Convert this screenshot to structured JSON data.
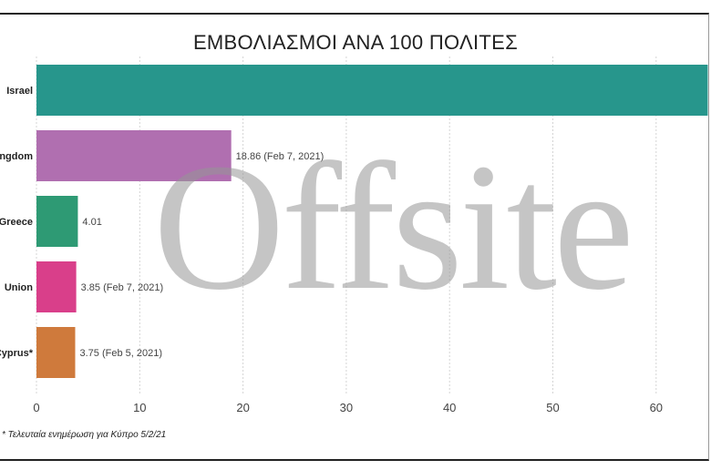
{
  "page": {
    "watermark": "Offsite",
    "footnote": "* Τελευταία ενημέρωση για Κύπρο 5/2/21"
  },
  "chart_data": {
    "type": "bar",
    "orientation": "horizontal",
    "title": "ΕΜΒΟΛΙΑΣΜΟΙ ΑΝΑ 100 ΠΟΛΙΤΕΣ",
    "xlim": [
      0,
      65
    ],
    "xticks": [
      0,
      10,
      20,
      30,
      40,
      50,
      60
    ],
    "grid": true,
    "categories": [
      "Israel",
      "United Kingdom",
      "Greece",
      "European Union",
      "Cyprus*"
    ],
    "category_labels_visible": [
      "Israel",
      "ngdom",
      "Greece",
      "Union",
      "Cyprus*"
    ],
    "values": [
      65,
      18.86,
      4.01,
      3.85,
      3.75
    ],
    "data_labels": [
      "",
      "18.86 (Feb 7, 2021)",
      "4.01",
      "3.85 (Feb 7, 2021)",
      "3.75 (Feb 5, 2021)"
    ],
    "colors": [
      "#27968c",
      "#b06fb0",
      "#2e9a74",
      "#d93f8a",
      "#cf7a3c"
    ]
  }
}
